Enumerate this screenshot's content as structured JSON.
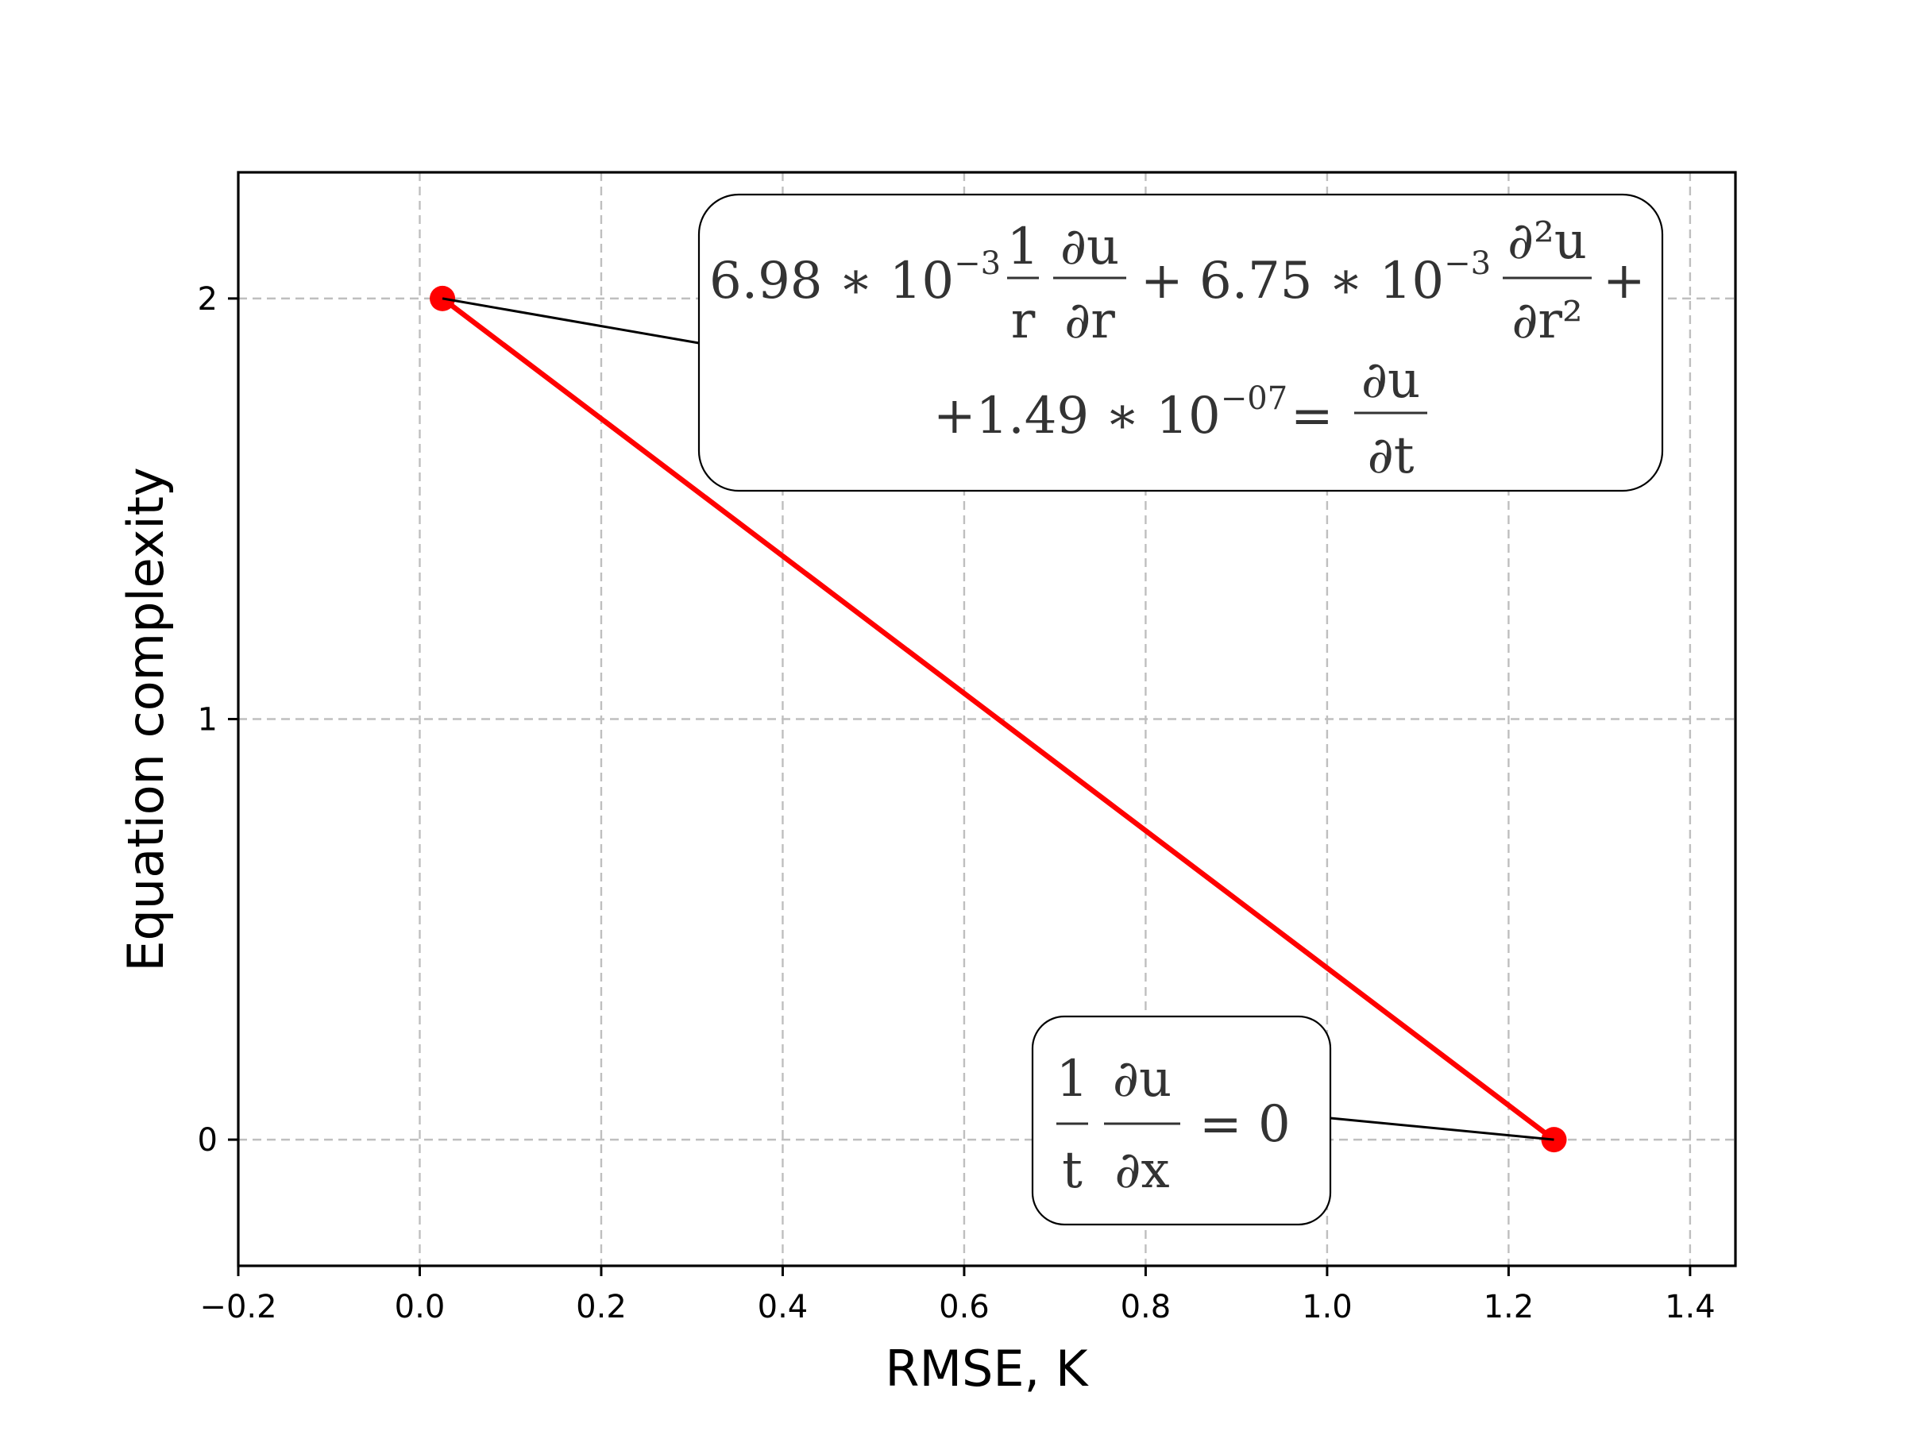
{
  "chart_data": {
    "type": "line",
    "xlabel": "RMSE, K",
    "ylabel": "Equation complexity",
    "xlim": [
      -0.2,
      1.45
    ],
    "ylim": [
      -0.3,
      2.3
    ],
    "xticks": [
      -0.2,
      0.0,
      0.2,
      0.4,
      0.6,
      0.8,
      1.0,
      1.2,
      1.4
    ],
    "xtick_labels": [
      "−0.2",
      "0.0",
      "0.2",
      "0.4",
      "0.6",
      "0.8",
      "1.0",
      "1.2",
      "1.4"
    ],
    "yticks": [
      0,
      1,
      2
    ],
    "ytick_labels": [
      "0",
      "1",
      "2"
    ],
    "grid": true,
    "series": [
      {
        "color": "#ff0000",
        "x": [
          0.025,
          1.25
        ],
        "y": [
          2,
          0
        ]
      }
    ],
    "annotations": [
      {
        "point_x": 0.025,
        "point_y": 2,
        "line1": {
          "t1_coef": "6.98 ∗ 10",
          "t1_exp": "−3",
          "f1_num": "1",
          "f1_den": "r",
          "f2_num": "∂u",
          "f2_den": "∂r",
          "plus1": "+ 6.75 ∗ 10",
          "t2_exp": "−3",
          "f3_num": "∂²u",
          "f3_den": "∂r²",
          "plus2": "+"
        },
        "line2": {
          "t3_coef": "+1.49 ∗ 10",
          "t3_exp": "−07",
          "eq": "=",
          "f4_num": "∂u",
          "f4_den": "∂t"
        }
      },
      {
        "point_x": 1.25,
        "point_y": 0,
        "f1_num": "1",
        "f1_den": "t",
        "f2_num": "∂u",
        "f2_den": "∂x",
        "rhs": "= 0"
      }
    ]
  }
}
